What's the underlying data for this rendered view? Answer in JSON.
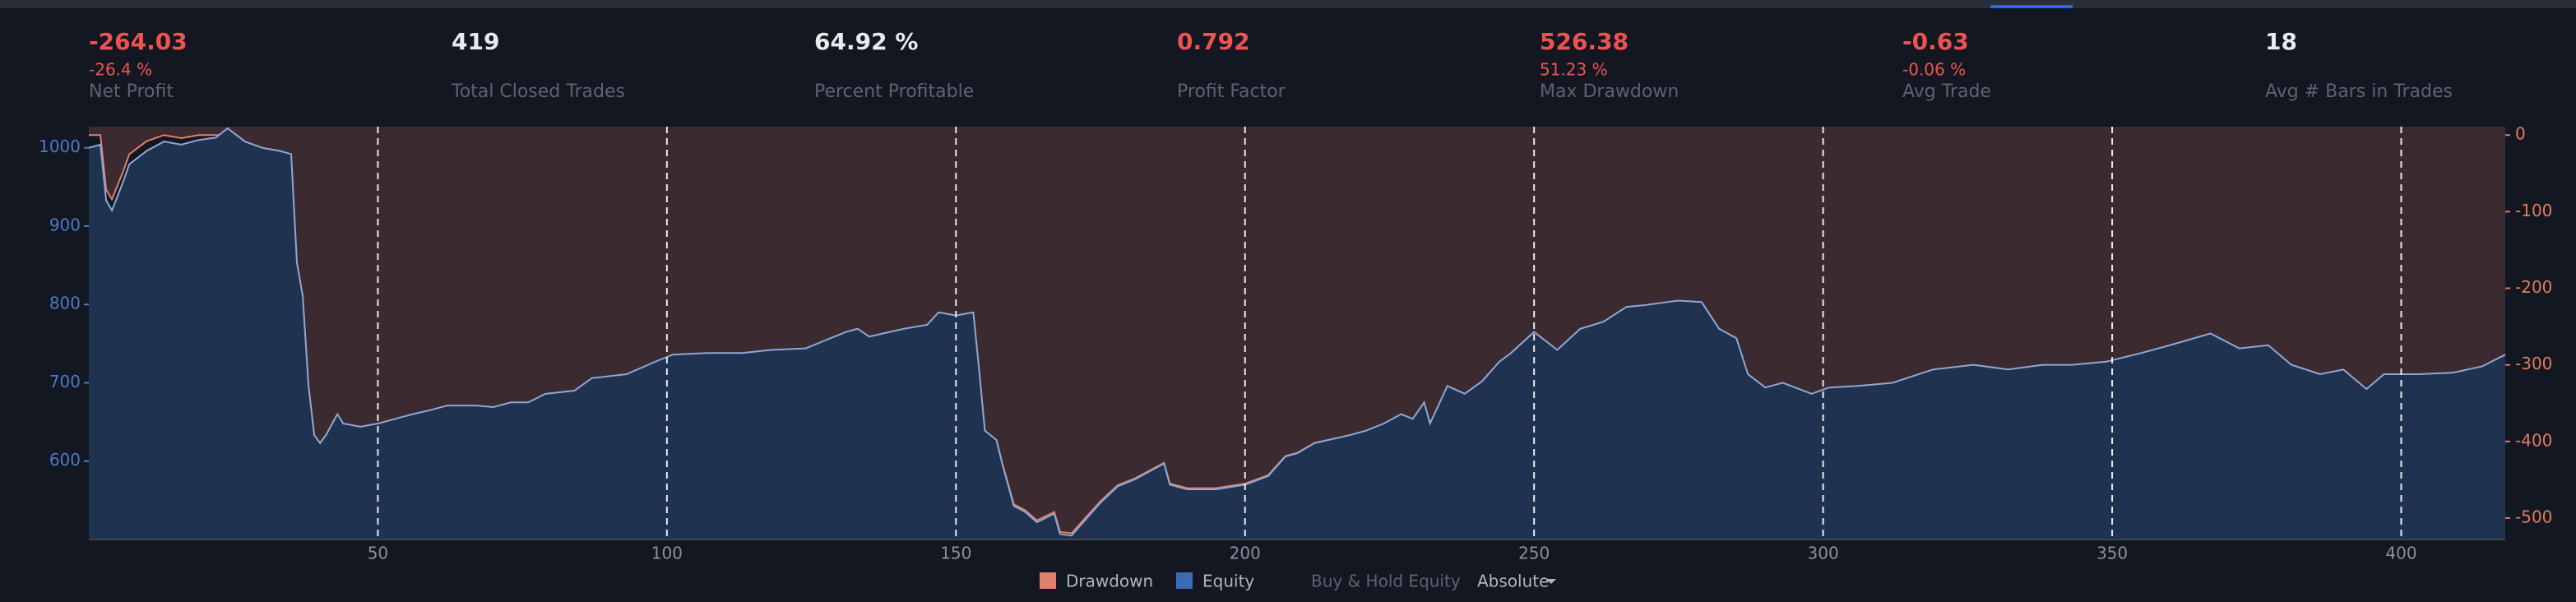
{
  "stats": [
    {
      "value": "-264.03",
      "sub": "-26.4 %",
      "label": "Net Profit",
      "color": "#ef5350"
    },
    {
      "value": "419",
      "label": "Total Closed Trades",
      "color": "#e8eaed"
    },
    {
      "value": "64.92 %",
      "label": "Percent Profitable",
      "color": "#e8eaed"
    },
    {
      "value": "0.792",
      "label": "Profit Factor",
      "color": "#ef5350"
    },
    {
      "value": "526.38",
      "sub": "51.23 %",
      "label": "Max Drawdown",
      "color": "#ef5350"
    },
    {
      "value": "-0.63",
      "sub": "-0.06 %",
      "label": "Avg Trade",
      "color": "#ef5350"
    },
    {
      "value": "18",
      "label": "Avg # Bars in Trades",
      "color": "#e8eaed"
    }
  ],
  "chart_data": {
    "type": "area",
    "x": [
      0,
      2,
      3,
      4,
      6,
      7,
      10,
      13,
      16,
      19,
      22,
      24,
      27,
      30,
      33,
      35,
      36,
      37,
      38,
      39,
      40,
      41,
      43,
      44,
      47,
      50,
      53,
      56,
      59,
      62,
      67,
      70,
      73,
      76,
      79,
      84,
      87,
      93,
      98,
      101,
      107,
      113,
      118,
      124,
      127,
      131,
      133,
      135,
      141,
      145,
      147,
      150,
      153,
      154,
      155,
      157,
      158,
      160,
      162,
      164,
      167,
      168,
      170,
      172,
      175,
      178,
      181,
      184,
      186,
      187,
      190,
      195,
      200,
      204,
      207,
      209,
      212,
      218,
      221,
      224,
      227,
      229,
      231,
      232,
      235,
      238,
      241,
      244,
      246,
      250,
      254,
      258,
      262,
      266,
      269,
      275,
      279,
      282,
      285,
      287,
      290,
      293,
      298,
      301,
      306,
      312,
      319,
      326,
      332,
      338,
      343,
      349,
      355,
      360,
      367,
      372,
      377,
      381,
      386,
      390,
      394,
      397,
      403,
      409,
      414,
      418
    ],
    "series": [
      {
        "name": "Drawdown",
        "color": "#e0806a",
        "fill": "#3b2a2f",
        "axis": "y2",
        "values": [
          0,
          0,
          -71,
          -84,
          -46,
          -25,
          -8,
          0,
          -4,
          0,
          0,
          0,
          -17,
          -25,
          -29,
          -33,
          -172,
          -214,
          -329,
          -392,
          -402,
          -392,
          -365,
          -377,
          -381,
          -377,
          -371,
          -365,
          -360,
          -354,
          -354,
          -356,
          -350,
          -350,
          -339,
          -335,
          -319,
          -314,
          -298,
          -289,
          -287,
          -287,
          -283,
          -281,
          -272,
          -260,
          -256,
          -266,
          -256,
          -251,
          -235,
          -239,
          -235,
          -308,
          -386,
          -398,
          -428,
          -482,
          -490,
          -503,
          -492,
          -518,
          -520,
          -503,
          -478,
          -457,
          -448,
          -436,
          -428,
          -455,
          -461,
          -461,
          -455,
          -444,
          -419,
          -415,
          -402,
          -392,
          -386,
          -377,
          -365,
          -371,
          -350,
          -377,
          -329,
          -339,
          -323,
          -298,
          -287,
          -260,
          -283,
          -256,
          -247,
          -228,
          -226,
          -220,
          -222,
          -256,
          -268,
          -314,
          -331,
          -325,
          -339,
          -331,
          -329,
          -325,
          -308,
          -302,
          -308,
          -302,
          -302,
          -298,
          -287,
          -277,
          -262,
          -281,
          -277,
          -302,
          -314,
          -308,
          -333,
          -314,
          -314,
          -312,
          -304,
          -289
        ]
      },
      {
        "name": "Equity",
        "color": "#3c6ab4",
        "line": "#8fa7d6",
        "fill": "#1f3350",
        "values": [
          1000,
          1004,
          933,
          920,
          958,
          979,
          996,
          1008,
          1004,
          1010,
          1013,
          1025,
          1008,
          1000,
          996,
          992,
          853,
          811,
          696,
          633,
          623,
          633,
          660,
          648,
          644,
          648,
          654,
          660,
          665,
          671,
          671,
          669,
          675,
          675,
          686,
          690,
          706,
          711,
          727,
          736,
          738,
          738,
          742,
          744,
          753,
          765,
          769,
          759,
          769,
          774,
          790,
          786,
          790,
          717,
          639,
          627,
          597,
          543,
          535,
          522,
          533,
          507,
          505,
          522,
          547,
          568,
          577,
          589,
          597,
          570,
          564,
          564,
          570,
          581,
          606,
          610,
          623,
          633,
          639,
          648,
          660,
          654,
          675,
          648,
          696,
          686,
          702,
          727,
          738,
          765,
          742,
          769,
          778,
          797,
          799,
          805,
          803,
          769,
          757,
          711,
          694,
          700,
          686,
          694,
          696,
          700,
          717,
          723,
          717,
          723,
          723,
          727,
          738,
          748,
          763,
          744,
          748,
          723,
          711,
          717,
          692,
          711,
          711,
          713,
          721,
          736
        ]
      }
    ],
    "xlim": [
      0,
      418
    ],
    "xticks": [
      50,
      100,
      150,
      200,
      250,
      300,
      350,
      400
    ],
    "ylim": [
      500,
      1027
    ],
    "yticks": [
      600,
      700,
      800,
      900,
      1000
    ],
    "y2lim": [
      -528,
      11
    ],
    "y2ticks": [
      0,
      -100,
      -200,
      -300,
      -400,
      -500
    ],
    "grid": true,
    "legend_extra": "Buy & Hold Equity",
    "mode": "Absolute"
  }
}
